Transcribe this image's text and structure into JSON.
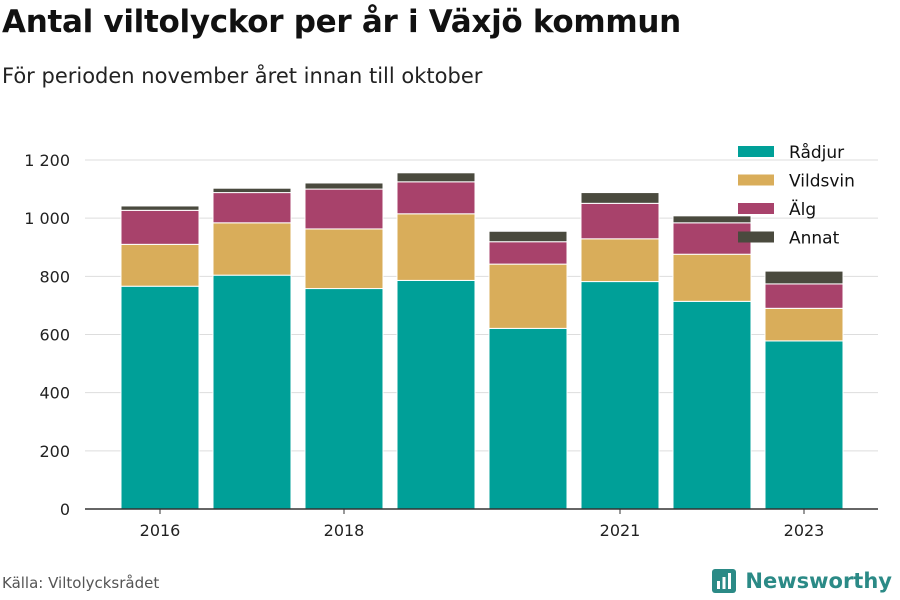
{
  "header": {
    "title": "Antal viltolyckor per år i Växjö kommun",
    "subtitle": "För perioden november året innan till oktober"
  },
  "footer": {
    "source": "Källa: Viltolycksrådet",
    "brand": "Newsworthy"
  },
  "colors": {
    "Rådjur": "#00a098",
    "Vildsvin": "#d9ad5a",
    "Älg": "#a8426b",
    "Annat": "#4a4a3e",
    "grid": "#dddddd",
    "axis": "#333333",
    "brand": "#2b8a86"
  },
  "chart_data": {
    "type": "bar",
    "stacked": true,
    "categories": [
      "2016",
      "2017",
      "2018",
      "2019",
      "2020",
      "2021",
      "2022",
      "2023"
    ],
    "x_tick_labels": [
      "2016",
      "",
      "2018",
      "",
      "",
      "2021",
      "",
      "2023"
    ],
    "series": [
      {
        "name": "Rådjur",
        "values": [
          766,
          804,
          758,
          786,
          621,
          782,
          714,
          578
        ]
      },
      {
        "name": "Vildsvin",
        "values": [
          144,
          180,
          205,
          229,
          221,
          147,
          162,
          112
        ]
      },
      {
        "name": "Älg",
        "values": [
          117,
          104,
          137,
          110,
          77,
          122,
          108,
          84
        ]
      },
      {
        "name": "Annat",
        "values": [
          15,
          15,
          21,
          31,
          36,
          37,
          24,
          44
        ]
      }
    ],
    "y_ticks": [
      0,
      200,
      400,
      600,
      800,
      1000,
      1200
    ],
    "y_tick_labels": [
      "0",
      "200",
      "400",
      "600",
      "800",
      "1 000",
      "1 200"
    ],
    "ylim": [
      0,
      1200
    ],
    "grid": true,
    "legend": "top-right"
  }
}
